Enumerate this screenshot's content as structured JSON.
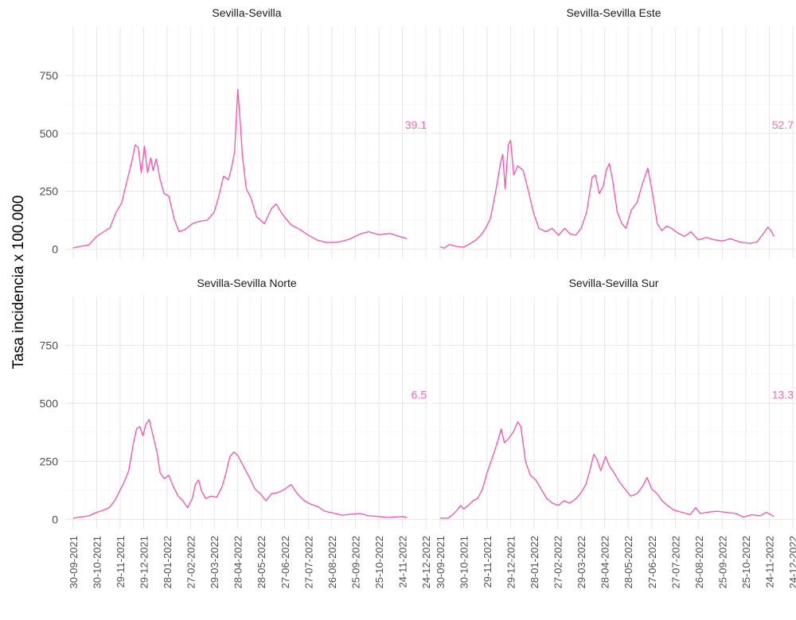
{
  "chart_data": {
    "type": "line",
    "ylabel": "Tasa incidencia x 100.000",
    "xlabel": "",
    "ylim": [
      -40,
      960
    ],
    "yticks": [
      0,
      250,
      500,
      750
    ],
    "xlim": [
      "2021-09-20",
      "2022-12-27"
    ],
    "xticks": [
      "30-09-2021",
      "30-10-2021",
      "29-11-2021",
      "29-12-2021",
      "28-01-2022",
      "27-02-2022",
      "29-03-2022",
      "28-04-2022",
      "28-05-2022",
      "27-06-2022",
      "27-07-2022",
      "26-08-2022",
      "25-09-2022",
      "25-10-2022",
      "24-11-2022",
      "24-12-2022"
    ],
    "grid": true,
    "line_color": "#ff4fa8",
    "panels": [
      {
        "title": "Sevilla-Sevilla",
        "annotation": "39.1",
        "annotation_color": "#ff69b4",
        "points": [
          [
            "2021-09-30",
            5
          ],
          [
            "2021-10-10",
            12
          ],
          [
            "2021-10-20",
            18
          ],
          [
            "2021-10-30",
            55
          ],
          [
            "2021-11-08",
            75
          ],
          [
            "2021-11-16",
            92
          ],
          [
            "2021-11-24",
            160
          ],
          [
            "2021-12-01",
            200
          ],
          [
            "2021-12-08",
            300
          ],
          [
            "2021-12-14",
            380
          ],
          [
            "2021-12-18",
            450
          ],
          [
            "2021-12-22",
            440
          ],
          [
            "2021-12-26",
            330
          ],
          [
            "2021-12-30",
            445
          ],
          [
            "2022-01-03",
            330
          ],
          [
            "2022-01-07",
            395
          ],
          [
            "2022-01-10",
            340
          ],
          [
            "2022-01-14",
            390
          ],
          [
            "2022-01-19",
            300
          ],
          [
            "2022-01-24",
            240
          ],
          [
            "2022-01-30",
            230
          ],
          [
            "2022-02-06",
            130
          ],
          [
            "2022-02-12",
            75
          ],
          [
            "2022-02-20",
            85
          ],
          [
            "2022-03-01",
            110
          ],
          [
            "2022-03-10",
            120
          ],
          [
            "2022-03-20",
            125
          ],
          [
            "2022-03-29",
            160
          ],
          [
            "2022-04-04",
            230
          ],
          [
            "2022-04-10",
            315
          ],
          [
            "2022-04-16",
            300
          ],
          [
            "2022-04-20",
            350
          ],
          [
            "2022-04-24",
            420
          ],
          [
            "2022-04-28",
            690
          ],
          [
            "2022-05-01",
            560
          ],
          [
            "2022-05-04",
            400
          ],
          [
            "2022-05-09",
            260
          ],
          [
            "2022-05-15",
            220
          ],
          [
            "2022-05-22",
            140
          ],
          [
            "2022-06-01",
            110
          ],
          [
            "2022-06-10",
            175
          ],
          [
            "2022-06-16",
            195
          ],
          [
            "2022-06-24",
            150
          ],
          [
            "2022-07-05",
            105
          ],
          [
            "2022-07-16",
            85
          ],
          [
            "2022-07-27",
            60
          ],
          [
            "2022-08-08",
            38
          ],
          [
            "2022-08-20",
            28
          ],
          [
            "2022-09-03",
            30
          ],
          [
            "2022-09-17",
            42
          ],
          [
            "2022-10-01",
            65
          ],
          [
            "2022-10-12",
            75
          ],
          [
            "2022-10-25",
            62
          ],
          [
            "2022-11-08",
            68
          ],
          [
            "2022-11-20",
            55
          ],
          [
            "2022-11-30",
            45
          ]
        ]
      },
      {
        "title": "Sevilla-Sevilla Este",
        "annotation": "52.7",
        "annotation_color": "#ff69b4",
        "points": [
          [
            "2021-09-30",
            10
          ],
          [
            "2021-10-05",
            4
          ],
          [
            "2021-10-12",
            20
          ],
          [
            "2021-10-20",
            12
          ],
          [
            "2021-10-30",
            8
          ],
          [
            "2021-11-08",
            25
          ],
          [
            "2021-11-15",
            40
          ],
          [
            "2021-11-21",
            60
          ],
          [
            "2021-11-27",
            90
          ],
          [
            "2021-12-03",
            130
          ],
          [
            "2021-12-10",
            250
          ],
          [
            "2021-12-16",
            370
          ],
          [
            "2021-12-19",
            410
          ],
          [
            "2021-12-22",
            260
          ],
          [
            "2021-12-26",
            450
          ],
          [
            "2021-12-29",
            470
          ],
          [
            "2022-01-02",
            320
          ],
          [
            "2022-01-07",
            360
          ],
          [
            "2022-01-14",
            340
          ],
          [
            "2022-01-20",
            260
          ],
          [
            "2022-01-27",
            160
          ],
          [
            "2022-02-03",
            90
          ],
          [
            "2022-02-12",
            75
          ],
          [
            "2022-02-20",
            90
          ],
          [
            "2022-02-28",
            60
          ],
          [
            "2022-03-08",
            90
          ],
          [
            "2022-03-15",
            65
          ],
          [
            "2022-03-22",
            60
          ],
          [
            "2022-03-29",
            90
          ],
          [
            "2022-04-05",
            160
          ],
          [
            "2022-04-12",
            310
          ],
          [
            "2022-04-16",
            320
          ],
          [
            "2022-04-21",
            240
          ],
          [
            "2022-04-26",
            270
          ],
          [
            "2022-04-30",
            340
          ],
          [
            "2022-05-04",
            370
          ],
          [
            "2022-05-08",
            300
          ],
          [
            "2022-05-14",
            160
          ],
          [
            "2022-05-20",
            110
          ],
          [
            "2022-05-25",
            90
          ],
          [
            "2022-06-01",
            170
          ],
          [
            "2022-06-08",
            200
          ],
          [
            "2022-06-15",
            280
          ],
          [
            "2022-06-22",
            350
          ],
          [
            "2022-06-28",
            240
          ],
          [
            "2022-07-04",
            110
          ],
          [
            "2022-07-10",
            80
          ],
          [
            "2022-07-16",
            100
          ],
          [
            "2022-07-22",
            90
          ],
          [
            "2022-07-30",
            70
          ],
          [
            "2022-08-08",
            55
          ],
          [
            "2022-08-16",
            75
          ],
          [
            "2022-08-25",
            40
          ],
          [
            "2022-09-05",
            50
          ],
          [
            "2022-09-15",
            40
          ],
          [
            "2022-09-25",
            35
          ],
          [
            "2022-10-05",
            45
          ],
          [
            "2022-10-18",
            30
          ],
          [
            "2022-10-30",
            25
          ],
          [
            "2022-11-08",
            30
          ],
          [
            "2022-11-16",
            65
          ],
          [
            "2022-11-22",
            95
          ],
          [
            "2022-11-26",
            80
          ],
          [
            "2022-11-30",
            55
          ]
        ]
      },
      {
        "title": "Sevilla-Sevilla Norte",
        "annotation": "6.5",
        "annotation_color": "#ff69b4",
        "points": [
          [
            "2021-09-30",
            5
          ],
          [
            "2021-10-10",
            10
          ],
          [
            "2021-10-20",
            15
          ],
          [
            "2021-10-30",
            30
          ],
          [
            "2021-11-08",
            40
          ],
          [
            "2021-11-15",
            50
          ],
          [
            "2021-11-22",
            80
          ],
          [
            "2021-11-28",
            120
          ],
          [
            "2021-12-04",
            160
          ],
          [
            "2021-12-10",
            210
          ],
          [
            "2021-12-16",
            330
          ],
          [
            "2021-12-20",
            390
          ],
          [
            "2021-12-24",
            400
          ],
          [
            "2021-12-28",
            360
          ],
          [
            "2022-01-01",
            410
          ],
          [
            "2022-01-05",
            430
          ],
          [
            "2022-01-10",
            360
          ],
          [
            "2022-01-15",
            290
          ],
          [
            "2022-01-19",
            200
          ],
          [
            "2022-01-24",
            175
          ],
          [
            "2022-01-30",
            190
          ],
          [
            "2022-02-05",
            140
          ],
          [
            "2022-02-11",
            100
          ],
          [
            "2022-02-17",
            80
          ],
          [
            "2022-02-23",
            50
          ],
          [
            "2022-03-01",
            90
          ],
          [
            "2022-03-05",
            150
          ],
          [
            "2022-03-09",
            170
          ],
          [
            "2022-03-13",
            120
          ],
          [
            "2022-03-18",
            90
          ],
          [
            "2022-03-25",
            100
          ],
          [
            "2022-04-01",
            95
          ],
          [
            "2022-04-08",
            140
          ],
          [
            "2022-04-13",
            200
          ],
          [
            "2022-04-18",
            270
          ],
          [
            "2022-04-23",
            290
          ],
          [
            "2022-04-28",
            275
          ],
          [
            "2022-05-05",
            230
          ],
          [
            "2022-05-13",
            180
          ],
          [
            "2022-05-20",
            130
          ],
          [
            "2022-05-27",
            110
          ],
          [
            "2022-06-03",
            80
          ],
          [
            "2022-06-10",
            110
          ],
          [
            "2022-06-18",
            115
          ],
          [
            "2022-06-27",
            130
          ],
          [
            "2022-07-05",
            150
          ],
          [
            "2022-07-13",
            110
          ],
          [
            "2022-07-22",
            80
          ],
          [
            "2022-07-30",
            65
          ],
          [
            "2022-08-08",
            55
          ],
          [
            "2022-08-17",
            35
          ],
          [
            "2022-08-26",
            28
          ],
          [
            "2022-09-08",
            18
          ],
          [
            "2022-09-20",
            22
          ],
          [
            "2022-10-01",
            25
          ],
          [
            "2022-10-12",
            15
          ],
          [
            "2022-10-25",
            12
          ],
          [
            "2022-11-05",
            8
          ],
          [
            "2022-11-15",
            10
          ],
          [
            "2022-11-25",
            12
          ],
          [
            "2022-11-30",
            7
          ]
        ]
      },
      {
        "title": "Sevilla-Sevilla Sur",
        "annotation": "13.3",
        "annotation_color": "#ff69b4",
        "points": [
          [
            "2021-09-30",
            5
          ],
          [
            "2021-10-10",
            5
          ],
          [
            "2021-10-16",
            20
          ],
          [
            "2021-10-22",
            40
          ],
          [
            "2021-10-26",
            60
          ],
          [
            "2021-10-30",
            45
          ],
          [
            "2021-11-05",
            60
          ],
          [
            "2021-11-11",
            80
          ],
          [
            "2021-11-17",
            90
          ],
          [
            "2021-11-23",
            130
          ],
          [
            "2021-11-29",
            200
          ],
          [
            "2021-12-05",
            260
          ],
          [
            "2021-12-11",
            320
          ],
          [
            "2021-12-17",
            390
          ],
          [
            "2021-12-21",
            330
          ],
          [
            "2021-12-27",
            350
          ],
          [
            "2022-01-02",
            380
          ],
          [
            "2022-01-07",
            420
          ],
          [
            "2022-01-11",
            400
          ],
          [
            "2022-01-17",
            250
          ],
          [
            "2022-01-23",
            190
          ],
          [
            "2022-01-30",
            170
          ],
          [
            "2022-02-06",
            130
          ],
          [
            "2022-02-13",
            90
          ],
          [
            "2022-02-20",
            70
          ],
          [
            "2022-02-28",
            60
          ],
          [
            "2022-03-07",
            80
          ],
          [
            "2022-03-14",
            70
          ],
          [
            "2022-03-21",
            85
          ],
          [
            "2022-03-28",
            110
          ],
          [
            "2022-04-04",
            150
          ],
          [
            "2022-04-09",
            210
          ],
          [
            "2022-04-14",
            280
          ],
          [
            "2022-04-18",
            260
          ],
          [
            "2022-04-23",
            210
          ],
          [
            "2022-04-29",
            270
          ],
          [
            "2022-05-04",
            230
          ],
          [
            "2022-05-10",
            200
          ],
          [
            "2022-05-17",
            160
          ],
          [
            "2022-05-24",
            130
          ],
          [
            "2022-05-31",
            100
          ],
          [
            "2022-06-08",
            110
          ],
          [
            "2022-06-15",
            140
          ],
          [
            "2022-06-21",
            180
          ],
          [
            "2022-06-27",
            130
          ],
          [
            "2022-07-04",
            110
          ],
          [
            "2022-07-10",
            80
          ],
          [
            "2022-07-17",
            60
          ],
          [
            "2022-07-25",
            40
          ],
          [
            "2022-08-05",
            30
          ],
          [
            "2022-08-15",
            20
          ],
          [
            "2022-08-22",
            50
          ],
          [
            "2022-08-28",
            25
          ],
          [
            "2022-09-05",
            30
          ],
          [
            "2022-09-18",
            35
          ],
          [
            "2022-10-01",
            30
          ],
          [
            "2022-10-12",
            25
          ],
          [
            "2022-10-22",
            10
          ],
          [
            "2022-11-02",
            20
          ],
          [
            "2022-11-12",
            15
          ],
          [
            "2022-11-20",
            30
          ],
          [
            "2022-11-26",
            20
          ],
          [
            "2022-11-30",
            12
          ]
        ]
      }
    ]
  }
}
